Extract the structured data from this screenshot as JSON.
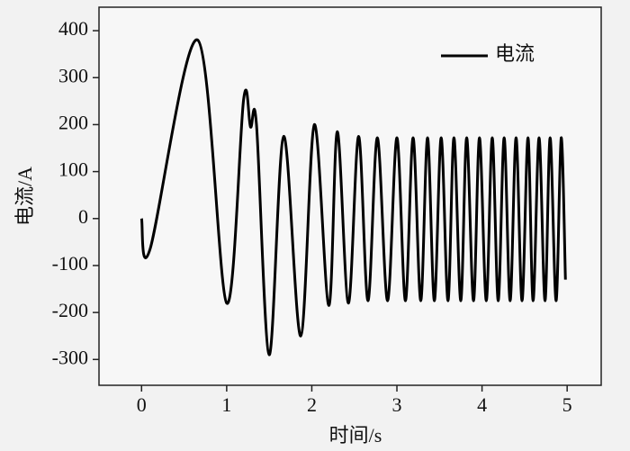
{
  "chart_data": {
    "type": "line",
    "x_label": "时间/s",
    "y_label": "电流/A",
    "xlim": [
      -0.5,
      5.4
    ],
    "ylim": [
      -355,
      450
    ],
    "xticks": [
      0,
      1,
      2,
      3,
      4,
      5
    ],
    "yticks": [
      -300,
      -200,
      -100,
      0,
      100,
      200,
      300,
      400
    ],
    "legend": "upper right",
    "series": [
      {
        "name": "电流",
        "color": "#000000",
        "x": [
          0,
          0.1,
          0.66,
          1.0,
          1.2,
          1.28,
          1.35,
          1.5,
          1.67,
          1.87,
          2.03,
          2.2,
          2.3,
          2.43,
          2.55,
          2.66,
          2.77,
          2.89,
          3.0,
          3.1,
          3.19,
          3.28,
          3.36,
          3.44,
          3.52,
          3.6,
          3.67,
          3.75,
          3.82,
          3.9,
          3.97,
          4.05,
          4.12,
          4.19,
          4.26,
          4.33,
          4.4,
          4.47,
          4.54,
          4.6,
          4.67,
          4.74,
          4.8,
          4.87,
          4.93,
          4.98
        ],
        "values": [
          0,
          -65,
          380,
          -180,
          255,
          195,
          200,
          -290,
          175,
          -250,
          200,
          -185,
          185,
          -180,
          175,
          -175,
          172,
          -175,
          172,
          -175,
          172,
          -175,
          172,
          -175,
          172,
          -175,
          172,
          -175,
          172,
          -175,
          172,
          -175,
          172,
          -175,
          172,
          -175,
          172,
          -175,
          172,
          -175,
          172,
          -175,
          172,
          -175,
          172,
          -130
        ]
      }
    ]
  }
}
